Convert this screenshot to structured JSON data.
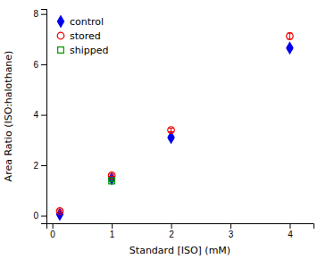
{
  "chart_data": {
    "type": "scatter",
    "xlabel": "Standard [ISO] (mM)",
    "ylabel": "Area Ratio (ISO:halothane)",
    "xlim": [
      -0.1,
      4.4
    ],
    "ylim": [
      -0.3,
      8.2
    ],
    "xticks": [
      0,
      1,
      2,
      3,
      4
    ],
    "yticks": [
      0,
      2,
      4,
      6,
      8
    ],
    "grid": false,
    "legend": "upper left",
    "series": [
      {
        "name": "control",
        "color": "#0000EE",
        "marker": "diamond",
        "x": [
          0.125,
          1.0,
          2.0,
          4.0
        ],
        "values": [
          0.05,
          1.47,
          3.1,
          6.65
        ],
        "errors": [
          0.04,
          0.04,
          0.07,
          0.07
        ]
      },
      {
        "name": "stored",
        "color": "#EE0000",
        "marker": "open-circle",
        "x": [
          0.125,
          1.0,
          2.0,
          4.0
        ],
        "values": [
          0.18,
          1.6,
          3.4,
          7.12
        ],
        "errors": [
          0.05,
          0.05,
          0.07,
          0.12
        ]
      },
      {
        "name": "shipped",
        "color": "#009900",
        "marker": "open-square",
        "x": [
          1.0
        ],
        "values": [
          1.38
        ],
        "errors": [
          0.03
        ]
      }
    ]
  }
}
